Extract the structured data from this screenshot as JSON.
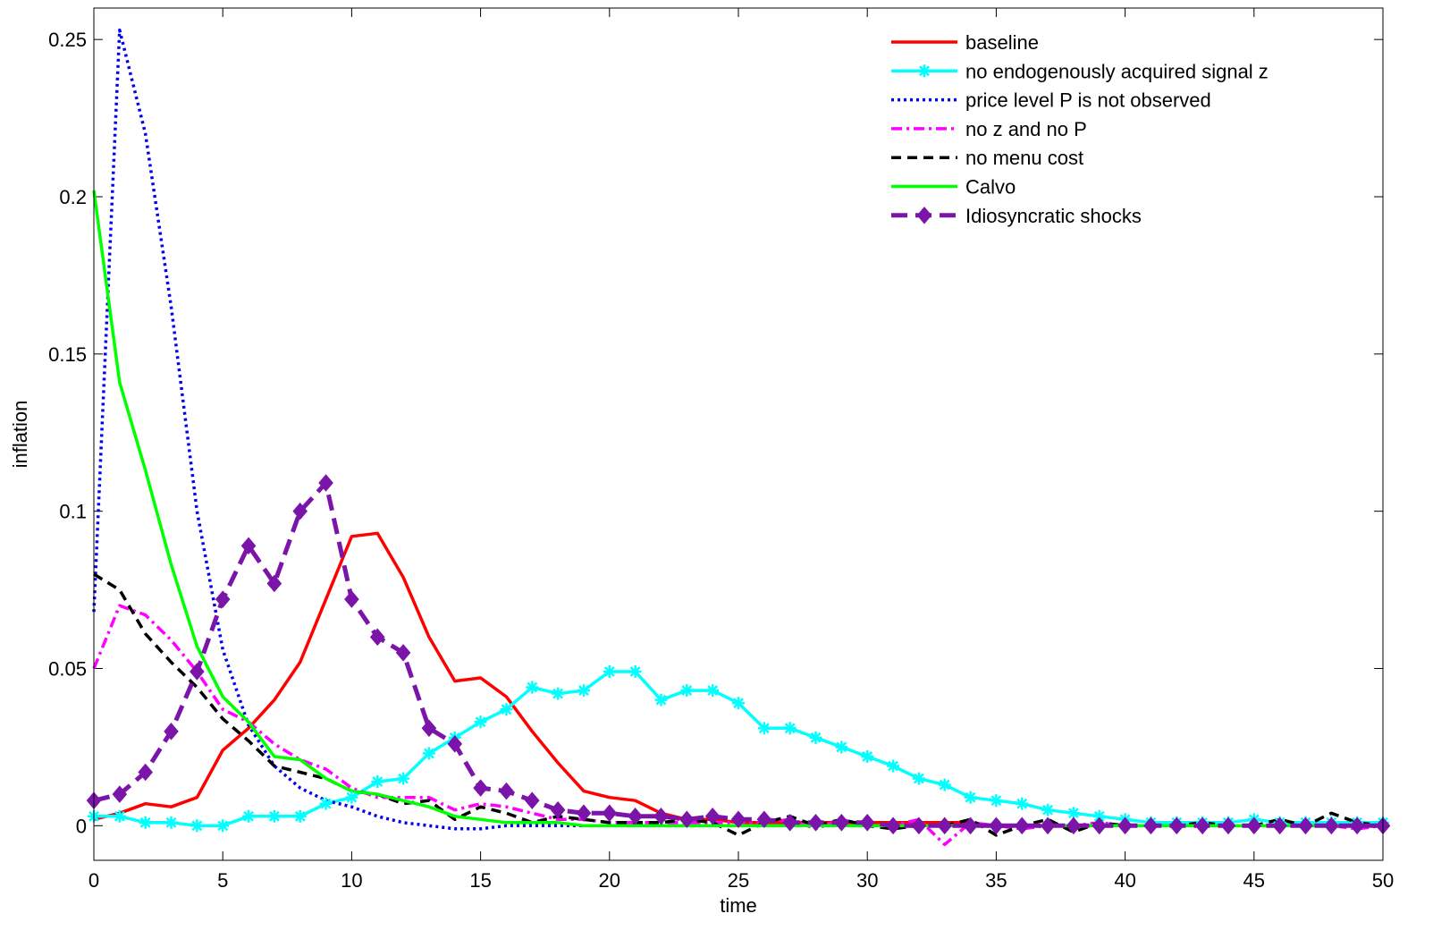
{
  "chart_data": {
    "type": "line",
    "title": "",
    "xlabel": "time",
    "ylabel": "inflation",
    "xlim": [
      0,
      50
    ],
    "ylim": [
      -0.011,
      0.26
    ],
    "xticks": [
      "0",
      "5",
      "10",
      "15",
      "20",
      "25",
      "30",
      "35",
      "40",
      "45",
      "50"
    ],
    "yticks": [
      "0",
      "0.05",
      "0.1",
      "0.15",
      "0.2",
      "0.25"
    ],
    "grid": false,
    "legend_position": "top-right",
    "x": [
      0,
      1,
      2,
      3,
      4,
      5,
      6,
      7,
      8,
      9,
      10,
      11,
      12,
      13,
      14,
      15,
      16,
      17,
      18,
      19,
      20,
      21,
      22,
      23,
      24,
      25,
      26,
      27,
      28,
      29,
      30,
      31,
      32,
      33,
      34,
      35,
      36,
      37,
      38,
      39,
      40,
      41,
      42,
      43,
      44,
      45,
      46,
      47,
      48,
      49,
      50
    ],
    "series": [
      {
        "name": "baseline",
        "color": "#ff0000",
        "style": "solid",
        "marker": "none",
        "values": [
          0.002,
          0.004,
          0.007,
          0.006,
          0.009,
          0.024,
          0.031,
          0.04,
          0.052,
          0.072,
          0.092,
          0.093,
          0.079,
          0.06,
          0.046,
          0.047,
          0.041,
          0.03,
          0.02,
          0.011,
          0.009,
          0.008,
          0.004,
          0.002,
          0.002,
          0.001,
          0.001,
          0.001,
          0.001,
          0.001,
          0.001,
          0.001,
          0.001,
          0.001,
          0.001,
          0.0,
          0.0,
          0.0,
          0.0,
          0.0,
          0.0,
          0.0,
          0.0,
          0.0,
          0.0,
          0.0,
          0.0,
          0.0,
          0.0,
          0.0,
          0.0
        ]
      },
      {
        "name": "no endogenously acquired signal z",
        "color": "#00ffff",
        "style": "solid",
        "marker": "asterisk",
        "values": [
          0.003,
          0.003,
          0.001,
          0.001,
          0.0,
          0.0,
          0.003,
          0.003,
          0.003,
          0.007,
          0.009,
          0.014,
          0.015,
          0.023,
          0.028,
          0.033,
          0.037,
          0.044,
          0.042,
          0.043,
          0.049,
          0.049,
          0.04,
          0.043,
          0.043,
          0.039,
          0.031,
          0.031,
          0.028,
          0.025,
          0.022,
          0.019,
          0.015,
          0.013,
          0.009,
          0.008,
          0.007,
          0.005,
          0.004,
          0.003,
          0.002,
          0.001,
          0.001,
          0.001,
          0.001,
          0.002,
          0.001,
          0.001,
          0.001,
          0.001,
          0.001
        ]
      },
      {
        "name": "price level P is not observed",
        "color": "#0000ee",
        "style": "dotted",
        "marker": "none",
        "values": [
          0.068,
          0.253,
          0.22,
          0.165,
          0.1,
          0.056,
          0.032,
          0.019,
          0.012,
          0.008,
          0.006,
          0.003,
          0.001,
          0.0,
          -0.001,
          -0.001,
          0.0,
          0.0,
          0.0,
          0.0,
          0.0,
          0.0,
          0.0,
          0.0,
          0.0,
          0.0,
          0.0,
          0.0,
          0.0,
          0.0,
          0.0,
          0.0,
          0.0,
          0.0,
          0.0,
          0.0,
          0.0,
          0.0,
          0.0,
          0.0,
          0.0,
          0.0,
          0.0,
          0.0,
          0.0,
          0.0,
          0.0,
          0.0,
          0.0,
          0.0,
          0.0
        ]
      },
      {
        "name": "no z and no P",
        "color": "#ff00ff",
        "style": "dashdot",
        "marker": "none",
        "values": [
          0.05,
          0.07,
          0.067,
          0.059,
          0.049,
          0.037,
          0.033,
          0.026,
          0.021,
          0.018,
          0.012,
          0.009,
          0.009,
          0.009,
          0.005,
          0.007,
          0.006,
          0.004,
          0.002,
          0.002,
          0.001,
          0.001,
          0.001,
          0.001,
          0.001,
          0.001,
          0.001,
          0.002,
          -0.001,
          0.002,
          0.0,
          0.0,
          0.002,
          -0.006,
          0.001,
          0.0,
          -0.001,
          0.0,
          0.0,
          0.001,
          0.0,
          0.0,
          0.0,
          0.0,
          0.0,
          0.0,
          0.0,
          0.0,
          0.0,
          -0.001,
          0.0
        ]
      },
      {
        "name": "no menu cost",
        "color": "#000000",
        "style": "dashed",
        "marker": "none",
        "values": [
          0.08,
          0.075,
          0.061,
          0.052,
          0.044,
          0.034,
          0.027,
          0.019,
          0.017,
          0.015,
          0.011,
          0.01,
          0.007,
          0.008,
          0.002,
          0.006,
          0.004,
          0.001,
          0.003,
          0.002,
          0.001,
          0.001,
          0.001,
          0.002,
          0.001,
          -0.003,
          0.001,
          0.003,
          0.0,
          0.002,
          0.0,
          -0.001,
          0.0,
          0.0,
          0.002,
          -0.003,
          0.0,
          0.002,
          -0.002,
          0.001,
          0.0,
          0.0,
          0.0,
          0.001,
          0.0,
          0.0,
          0.002,
          0.0,
          0.004,
          0.001,
          0.0
        ]
      },
      {
        "name": "Calvo",
        "color": "#00ff00",
        "style": "solid",
        "marker": "none",
        "values": [
          0.202,
          0.141,
          0.113,
          0.083,
          0.057,
          0.041,
          0.033,
          0.022,
          0.021,
          0.015,
          0.011,
          0.01,
          0.008,
          0.006,
          0.003,
          0.002,
          0.001,
          0.001,
          0.001,
          0.0,
          0.0,
          0.0,
          0.0,
          0.0,
          0.0,
          0.0,
          0.0,
          0.0,
          0.0,
          0.0,
          0.0,
          0.0,
          0.0,
          0.0,
          0.0,
          0.0,
          0.0,
          0.0,
          0.0,
          0.0,
          0.0,
          0.0,
          0.0,
          0.0,
          0.0,
          0.0,
          0.0,
          0.0,
          0.0,
          0.0,
          0.0
        ]
      },
      {
        "name": "Idiosyncratic shocks",
        "color": "#7b14a8",
        "style": "dashed-thick",
        "marker": "diamond",
        "values": [
          0.008,
          0.01,
          0.017,
          0.03,
          0.049,
          0.072,
          0.089,
          0.077,
          0.1,
          0.109,
          0.072,
          0.06,
          0.055,
          0.031,
          0.026,
          0.012,
          0.011,
          0.008,
          0.005,
          0.004,
          0.004,
          0.003,
          0.003,
          0.002,
          0.003,
          0.002,
          0.002,
          0.001,
          0.001,
          0.001,
          0.001,
          0.0,
          0.0,
          0.0,
          0.0,
          0.0,
          0.0,
          0.0,
          0.0,
          0.0,
          0.0,
          0.0,
          0.0,
          0.0,
          0.0,
          0.0,
          0.0,
          0.0,
          0.0,
          0.0,
          0.0
        ]
      }
    ]
  }
}
